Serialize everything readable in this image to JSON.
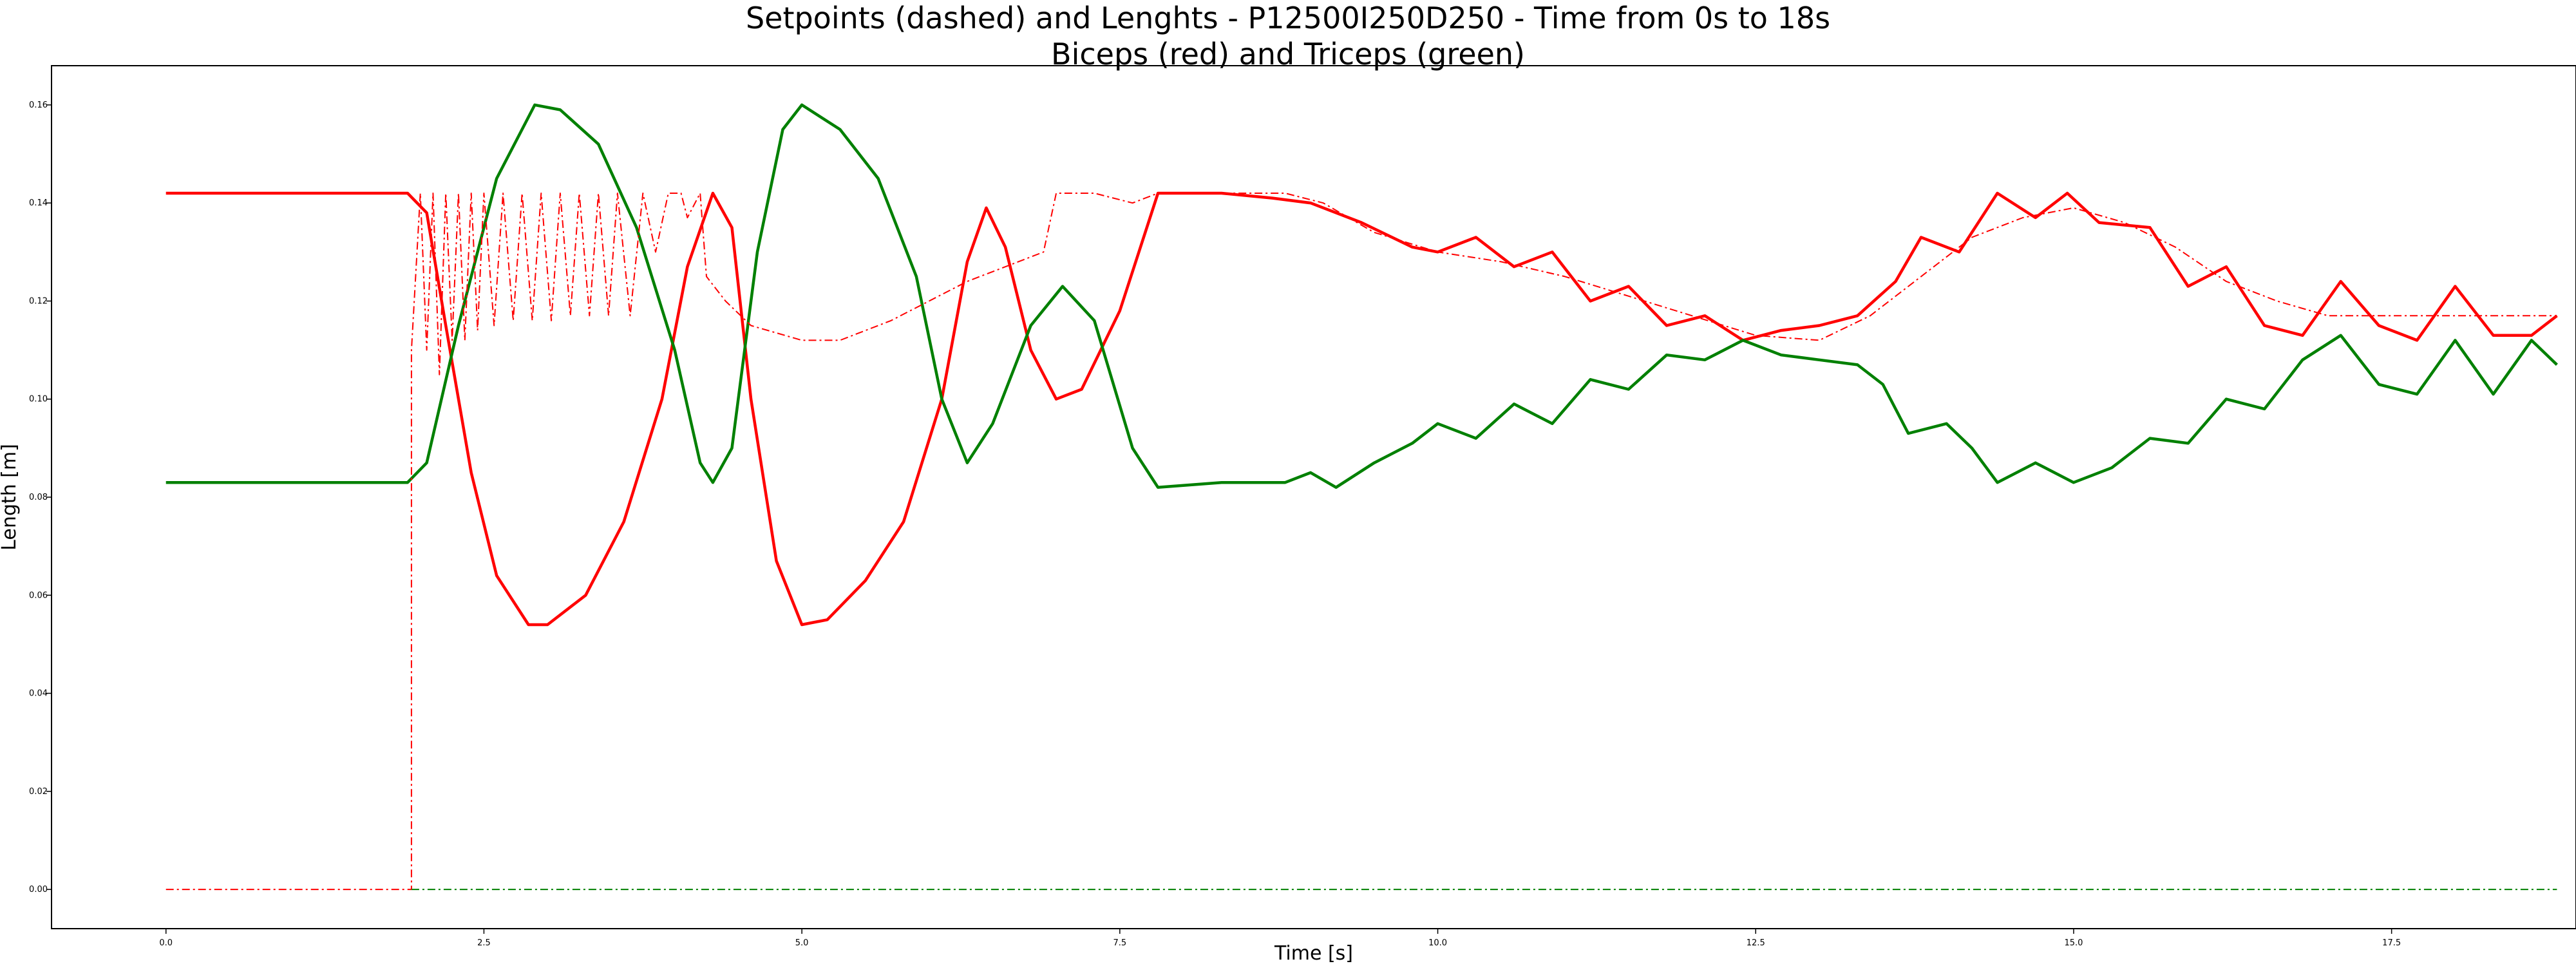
{
  "chart_data": {
    "type": "line",
    "title": "Setpoints (dashed) and Lenghts - P12500I250D250 - Time from 0s to 18s",
    "subtitle": "Biceps (red) and Triceps (green)",
    "xlabel": "Time [s]",
    "ylabel": "Length [m]",
    "xlim": [
      -0.9,
      18.95
    ],
    "ylim": [
      -0.008,
      0.168
    ],
    "xticks": [
      "0.0",
      "2.5",
      "5.0",
      "7.5",
      "10.0",
      "12.5",
      "15.0",
      "17.5"
    ],
    "yticks": [
      "0.00",
      "0.02",
      "0.04",
      "0.06",
      "0.08",
      "0.10",
      "0.12",
      "0.14",
      "0.16"
    ],
    "grid": false,
    "colors": {
      "biceps": "#ff0000",
      "triceps": "#008000"
    },
    "series": [
      {
        "style": "solid",
        "color": "#ff0000",
        "points": [
          [
            0.0,
            0.142
          ],
          [
            1.9,
            0.142
          ],
          [
            2.05,
            0.138
          ],
          [
            2.2,
            0.115
          ],
          [
            2.4,
            0.085
          ],
          [
            2.6,
            0.064
          ],
          [
            2.85,
            0.054
          ],
          [
            3.0,
            0.054
          ],
          [
            3.3,
            0.06
          ],
          [
            3.6,
            0.075
          ],
          [
            3.9,
            0.1
          ],
          [
            4.1,
            0.127
          ],
          [
            4.3,
            0.142
          ],
          [
            4.45,
            0.135
          ],
          [
            4.6,
            0.1
          ],
          [
            4.8,
            0.067
          ],
          [
            5.0,
            0.054
          ],
          [
            5.2,
            0.055
          ],
          [
            5.5,
            0.063
          ],
          [
            5.8,
            0.075
          ],
          [
            6.1,
            0.1
          ],
          [
            6.3,
            0.128
          ],
          [
            6.45,
            0.139
          ],
          [
            6.6,
            0.131
          ],
          [
            6.8,
            0.11
          ],
          [
            7.0,
            0.1
          ],
          [
            7.2,
            0.102
          ],
          [
            7.5,
            0.118
          ],
          [
            7.8,
            0.142
          ],
          [
            8.3,
            0.142
          ],
          [
            8.7,
            0.141
          ],
          [
            9.0,
            0.14
          ],
          [
            9.4,
            0.136
          ],
          [
            9.8,
            0.131
          ],
          [
            10.0,
            0.13
          ],
          [
            10.3,
            0.133
          ],
          [
            10.6,
            0.127
          ],
          [
            10.9,
            0.13
          ],
          [
            11.2,
            0.12
          ],
          [
            11.5,
            0.123
          ],
          [
            11.8,
            0.115
          ],
          [
            12.1,
            0.117
          ],
          [
            12.4,
            0.112
          ],
          [
            12.7,
            0.114
          ],
          [
            13.0,
            0.115
          ],
          [
            13.3,
            0.117
          ],
          [
            13.6,
            0.124
          ],
          [
            13.8,
            0.133
          ],
          [
            14.1,
            0.13
          ],
          [
            14.4,
            0.142
          ],
          [
            14.7,
            0.137
          ],
          [
            14.95,
            0.142
          ],
          [
            15.2,
            0.136
          ],
          [
            15.6,
            0.135
          ],
          [
            15.9,
            0.123
          ],
          [
            16.2,
            0.127
          ],
          [
            16.5,
            0.115
          ],
          [
            16.8,
            0.113
          ],
          [
            17.1,
            0.124
          ],
          [
            17.4,
            0.115
          ],
          [
            17.7,
            0.112
          ],
          [
            18.0,
            0.123
          ],
          [
            18.3,
            0.113
          ],
          [
            18.6,
            0.113
          ],
          [
            18.8,
            0.117
          ]
        ]
      },
      {
        "style": "solid",
        "color": "#008000",
        "points": [
          [
            0.0,
            0.083
          ],
          [
            1.9,
            0.083
          ],
          [
            2.05,
            0.087
          ],
          [
            2.3,
            0.115
          ],
          [
            2.6,
            0.145
          ],
          [
            2.9,
            0.16
          ],
          [
            3.1,
            0.159
          ],
          [
            3.4,
            0.152
          ],
          [
            3.7,
            0.135
          ],
          [
            4.0,
            0.11
          ],
          [
            4.2,
            0.087
          ],
          [
            4.3,
            0.083
          ],
          [
            4.45,
            0.09
          ],
          [
            4.65,
            0.13
          ],
          [
            4.85,
            0.155
          ],
          [
            5.0,
            0.16
          ],
          [
            5.3,
            0.155
          ],
          [
            5.6,
            0.145
          ],
          [
            5.9,
            0.125
          ],
          [
            6.1,
            0.1
          ],
          [
            6.3,
            0.087
          ],
          [
            6.5,
            0.095
          ],
          [
            6.8,
            0.115
          ],
          [
            7.05,
            0.123
          ],
          [
            7.3,
            0.116
          ],
          [
            7.6,
            0.09
          ],
          [
            7.8,
            0.082
          ],
          [
            8.3,
            0.083
          ],
          [
            8.8,
            0.083
          ],
          [
            9.0,
            0.085
          ],
          [
            9.2,
            0.082
          ],
          [
            9.5,
            0.087
          ],
          [
            9.8,
            0.091
          ],
          [
            10.0,
            0.095
          ],
          [
            10.3,
            0.092
          ],
          [
            10.6,
            0.099
          ],
          [
            10.9,
            0.095
          ],
          [
            11.2,
            0.104
          ],
          [
            11.5,
            0.102
          ],
          [
            11.8,
            0.109
          ],
          [
            12.1,
            0.108
          ],
          [
            12.4,
            0.112
          ],
          [
            12.7,
            0.109
          ],
          [
            13.0,
            0.108
          ],
          [
            13.3,
            0.107
          ],
          [
            13.5,
            0.103
          ],
          [
            13.7,
            0.093
          ],
          [
            14.0,
            0.095
          ],
          [
            14.2,
            0.09
          ],
          [
            14.4,
            0.083
          ],
          [
            14.7,
            0.087
          ],
          [
            15.0,
            0.083
          ],
          [
            15.3,
            0.086
          ],
          [
            15.6,
            0.092
          ],
          [
            15.9,
            0.091
          ],
          [
            16.2,
            0.1
          ],
          [
            16.5,
            0.098
          ],
          [
            16.8,
            0.108
          ],
          [
            17.1,
            0.113
          ],
          [
            17.4,
            0.103
          ],
          [
            17.7,
            0.101
          ],
          [
            18.0,
            0.112
          ],
          [
            18.3,
            0.101
          ],
          [
            18.6,
            0.112
          ],
          [
            18.8,
            0.107
          ]
        ]
      },
      {
        "style": "dashdot",
        "color": "#ff0000",
        "points": [
          [
            0.0,
            0.0
          ],
          [
            1.93,
            0.0
          ],
          [
            1.93,
            0.11
          ],
          [
            2.0,
            0.142
          ],
          [
            2.05,
            0.11
          ],
          [
            2.1,
            0.142
          ],
          [
            2.15,
            0.105
          ],
          [
            2.2,
            0.142
          ],
          [
            2.25,
            0.112
          ],
          [
            2.3,
            0.142
          ],
          [
            2.35,
            0.112
          ],
          [
            2.4,
            0.142
          ],
          [
            2.45,
            0.114
          ],
          [
            2.5,
            0.142
          ],
          [
            2.58,
            0.115
          ],
          [
            2.65,
            0.142
          ],
          [
            2.73,
            0.116
          ],
          [
            2.8,
            0.142
          ],
          [
            2.88,
            0.116
          ],
          [
            2.95,
            0.142
          ],
          [
            3.03,
            0.116
          ],
          [
            3.1,
            0.142
          ],
          [
            3.18,
            0.117
          ],
          [
            3.25,
            0.142
          ],
          [
            3.33,
            0.117
          ],
          [
            3.4,
            0.142
          ],
          [
            3.48,
            0.117
          ],
          [
            3.55,
            0.142
          ],
          [
            3.65,
            0.117
          ],
          [
            3.75,
            0.142
          ],
          [
            3.85,
            0.13
          ],
          [
            3.95,
            0.142
          ],
          [
            4.05,
            0.142
          ],
          [
            4.1,
            0.137
          ],
          [
            4.2,
            0.142
          ],
          [
            4.25,
            0.125
          ],
          [
            4.4,
            0.12
          ],
          [
            4.6,
            0.115
          ],
          [
            5.0,
            0.112
          ],
          [
            5.3,
            0.112
          ],
          [
            5.7,
            0.116
          ],
          [
            6.0,
            0.12
          ],
          [
            6.3,
            0.124
          ],
          [
            6.6,
            0.127
          ],
          [
            6.9,
            0.13
          ],
          [
            7.0,
            0.142
          ],
          [
            7.3,
            0.142
          ],
          [
            7.6,
            0.14
          ],
          [
            7.8,
            0.142
          ],
          [
            8.3,
            0.142
          ],
          [
            8.8,
            0.142
          ],
          [
            9.1,
            0.14
          ],
          [
            9.5,
            0.134
          ],
          [
            10.0,
            0.13
          ],
          [
            10.5,
            0.128
          ],
          [
            11.0,
            0.125
          ],
          [
            11.5,
            0.121
          ],
          [
            12.0,
            0.117
          ],
          [
            12.5,
            0.113
          ],
          [
            13.0,
            0.112
          ],
          [
            13.4,
            0.117
          ],
          [
            13.8,
            0.125
          ],
          [
            14.2,
            0.133
          ],
          [
            14.6,
            0.137
          ],
          [
            15.0,
            0.139
          ],
          [
            15.4,
            0.136
          ],
          [
            15.8,
            0.131
          ],
          [
            16.2,
            0.124
          ],
          [
            16.6,
            0.12
          ],
          [
            17.0,
            0.117
          ],
          [
            17.5,
            0.117
          ],
          [
            18.8,
            0.117
          ]
        ]
      },
      {
        "style": "dashdot",
        "color": "#008000",
        "points": [
          [
            1.93,
            0.0
          ],
          [
            18.8,
            0.0
          ]
        ]
      }
    ]
  }
}
